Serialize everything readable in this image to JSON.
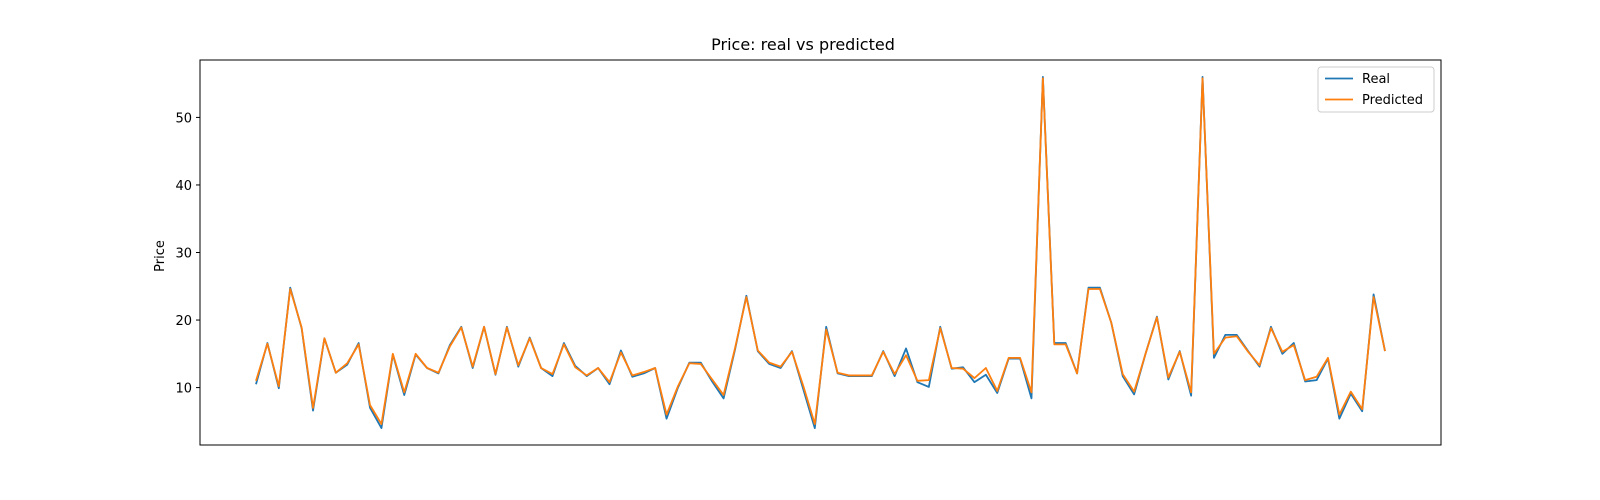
{
  "chart_data": {
    "type": "line",
    "title": "Price: real vs predicted",
    "xlabel": "",
    "ylabel": "Price",
    "ylim": [
      1.5,
      58.5
    ],
    "yticks": [
      10,
      20,
      30,
      40,
      50
    ],
    "xticks_visible": false,
    "grid": false,
    "legend_position": "top-right",
    "series": [
      {
        "name": "Real",
        "color": "#1f77b4",
        "values": [
          10.5,
          16.6,
          9.9,
          24.8,
          18.8,
          6.6,
          17.3,
          12.2,
          13.4,
          16.6,
          7.0,
          4.0,
          14.9,
          8.9,
          14.9,
          12.9,
          12.1,
          16.3,
          19.0,
          12.9,
          19.0,
          11.9,
          19.0,
          13.1,
          17.4,
          12.9,
          11.7,
          16.6,
          13.2,
          11.7,
          12.9,
          10.5,
          15.5,
          11.6,
          12.1,
          12.9,
          5.4,
          10.0,
          13.7,
          13.7,
          10.9,
          8.4,
          15.6,
          23.6,
          15.4,
          13.5,
          12.9,
          15.4,
          9.7,
          4.0,
          19.0,
          12.1,
          11.7,
          11.7,
          11.7,
          15.4,
          11.7,
          15.8,
          10.8,
          10.1,
          19.0,
          12.8,
          13.0,
          10.8,
          11.9,
          9.2,
          14.3,
          14.3,
          8.4,
          56.0,
          16.6,
          16.6,
          12.1,
          24.8,
          24.8,
          19.6,
          11.7,
          9.0,
          15.0,
          20.5,
          11.2,
          15.4,
          8.8,
          56.0,
          14.4,
          17.8,
          17.8,
          15.4,
          13.1,
          19.0,
          15.0,
          16.6,
          10.9,
          11.1,
          14.3,
          5.4,
          9.1,
          6.5,
          23.8,
          15.4
        ]
      },
      {
        "name": "Predicted",
        "color": "#ff7f0e",
        "values": [
          11.0,
          16.5,
          10.2,
          24.6,
          18.9,
          7.0,
          17.3,
          12.2,
          13.6,
          16.4,
          7.4,
          4.6,
          15.0,
          9.3,
          15.0,
          12.9,
          12.2,
          16.1,
          18.9,
          13.1,
          19.0,
          12.0,
          18.9,
          13.3,
          17.3,
          12.9,
          12.0,
          16.4,
          13.0,
          11.8,
          12.9,
          10.8,
          15.2,
          11.8,
          12.3,
          12.9,
          6.0,
          10.2,
          13.6,
          13.5,
          11.2,
          8.9,
          15.8,
          23.4,
          15.5,
          13.7,
          13.1,
          15.3,
          10.2,
          4.6,
          18.6,
          12.2,
          11.8,
          11.8,
          11.8,
          15.3,
          12.0,
          14.8,
          11.0,
          11.1,
          18.8,
          12.9,
          12.8,
          11.4,
          12.9,
          9.5,
          14.4,
          14.4,
          9.3,
          55.8,
          16.4,
          16.4,
          12.1,
          24.6,
          24.6,
          19.6,
          12.0,
          9.4,
          15.0,
          20.4,
          11.5,
          15.3,
          9.3,
          55.8,
          15.0,
          17.4,
          17.6,
          15.3,
          13.3,
          18.8,
          15.3,
          16.3,
          11.1,
          11.6,
          14.4,
          6.0,
          9.4,
          6.8,
          23.4,
          15.4
        ]
      }
    ]
  }
}
